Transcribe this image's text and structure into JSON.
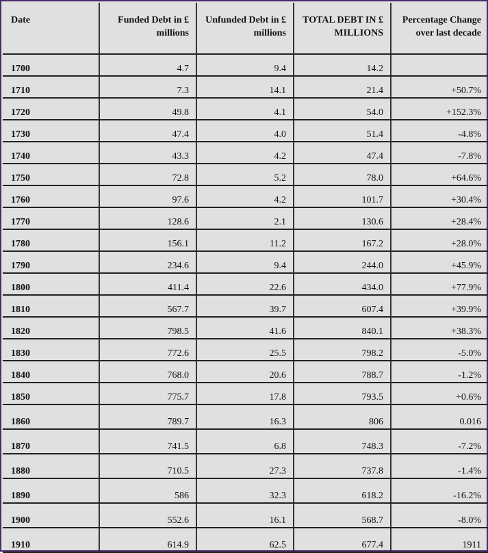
{
  "headers": [
    "Date",
    "Funded Debt in £ millions",
    "Unfunded Debt in £ millions",
    "TOTAL DEBT IN £ MILLIONS",
    "Percentage Change over last decade"
  ],
  "rows": [
    [
      "1700",
      "4.7",
      "9.4",
      "14.2",
      ""
    ],
    [
      "1710",
      "7.3",
      "14.1",
      "21.4",
      "+50.7%"
    ],
    [
      "1720",
      "49.8",
      "4.1",
      "54.0",
      "+152.3%"
    ],
    [
      "1730",
      "47.4",
      "4.0",
      "51.4",
      "-4.8%"
    ],
    [
      "1740",
      "43.3",
      "4.2",
      "47.4",
      "-7.8%"
    ],
    [
      "1750",
      "72.8",
      "5.2",
      "78.0",
      "+64.6%"
    ],
    [
      "1760",
      "97.6",
      "4.2",
      "101.7",
      "+30.4%"
    ],
    [
      "1770",
      "128.6",
      "2.1",
      "130.6",
      "+28.4%"
    ],
    [
      "1780",
      "156.1",
      "11.2",
      "167.2",
      "+28.0%"
    ],
    [
      "1790",
      "234.6",
      "9.4",
      "244.0",
      "+45.9%"
    ],
    [
      "1800",
      "411.4",
      "22.6",
      "434.0",
      "+77.9%"
    ],
    [
      "1810",
      "567.7",
      "39.7",
      "607.4",
      "+39.9%"
    ],
    [
      "1820",
      "798.5",
      "41.6",
      "840.1",
      "+38.3%"
    ],
    [
      "1830",
      "772.6",
      "25.5",
      "798.2",
      "-5.0%"
    ],
    [
      "1840",
      "768.0",
      "20.6",
      "788.7",
      "-1.2%"
    ],
    [
      "1850",
      "775.7",
      "17.8",
      "793.5",
      "+0.6%"
    ],
    [
      "1860",
      "789.7",
      "16.3",
      "806",
      "0.016"
    ],
    [
      "1870",
      "741.5",
      "6.8",
      "748.3",
      "-7.2%"
    ],
    [
      "1880",
      "710.5",
      "27.3",
      "737.8",
      "-1.4%"
    ],
    [
      "1890",
      "586",
      "32.3",
      "618.2",
      "-16.2%"
    ],
    [
      "1900",
      "552.6",
      "16.1",
      "568.7",
      "-8.0%"
    ],
    [
      "1910",
      "614.9",
      "62.5",
      "677.4",
      "1911"
    ]
  ],
  "colors": {
    "cell_background": "#e0e0e0",
    "frame_border": "#4b2a6b",
    "grid_lines": "#222222"
  }
}
